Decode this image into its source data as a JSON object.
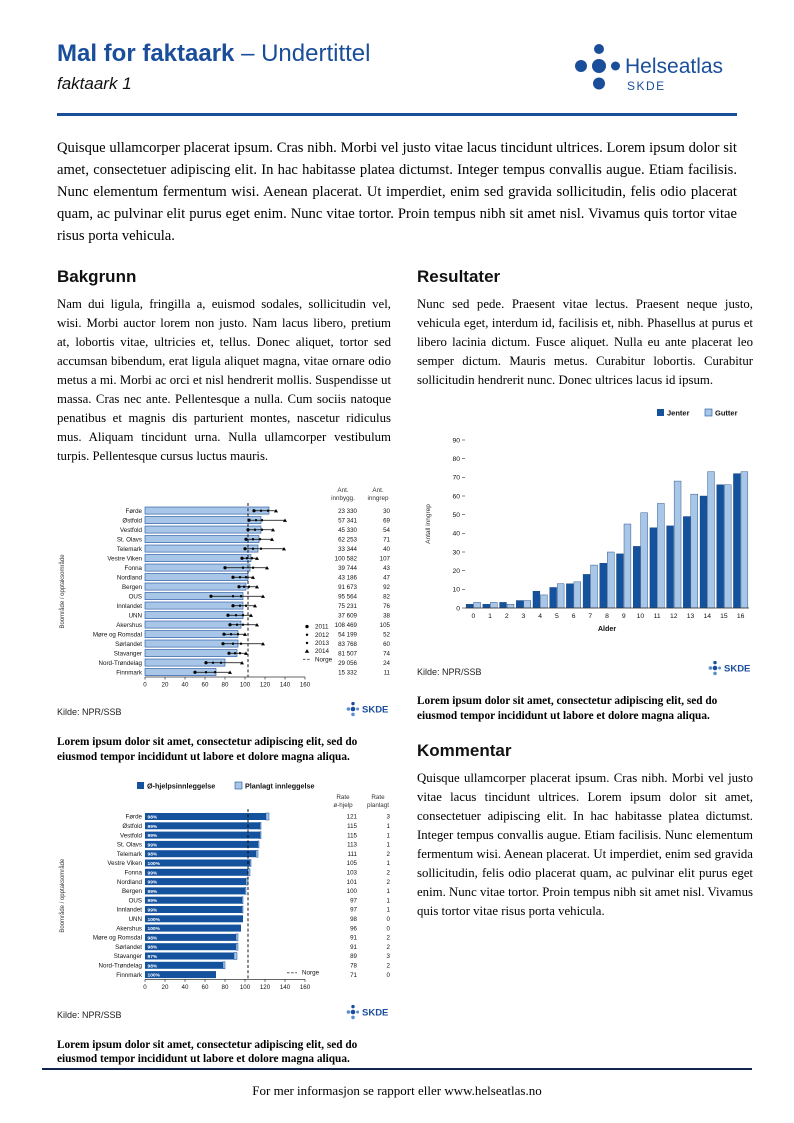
{
  "page": {
    "header": {
      "title_bold": "Mal for faktaark",
      "title_rest": " – Undertittel",
      "subtitle": "faktaark 1",
      "logo_name": "Helseatlas",
      "logo_sub": "SKDE"
    },
    "intro": "Quisque ullamcorper placerat ipsum. Cras nibh. Morbi vel justo vitae lacus tincidunt ultrices. Lorem ipsum dolor sit amet, consectetuer adipiscing elit. In hac habitasse platea dictumst. Integer tempus convallis augue. Etiam facilisis. Nunc elementum fermentum wisi. Aenean placerat. Ut imperdiet, enim sed gravida sollicitudin, felis odio placerat quam, ac pulvinar elit purus eget enim. Nunc vitae tortor. Proin tempus nibh sit amet nisl. Vivamus quis tortor vitae risus porta vehicula.",
    "sections": {
      "bakgrunn": {
        "heading": "Bakgrunn",
        "body": "Nam dui ligula, fringilla a, euismod sodales, sollicitudin vel, wisi. Morbi auctor lorem non justo. Nam lacus libero, pretium at, lobortis vitae, ultricies et, tellus. Donec aliquet, tortor sed accumsan bibendum, erat ligula aliquet magna, vitae ornare odio metus a mi. Morbi ac orci et nisl hendrerit mollis. Suspendisse ut massa. Cras nec ante. Pellentesque a nulla. Cum sociis natoque penatibus et magnis dis parturient montes, nascetur ridiculus mus. Aliquam tincidunt urna. Nulla ullamcorper vestibulum turpis. Pellentesque cursus luctus mauris."
      },
      "resultater": {
        "heading": "Resultater",
        "body": "Nunc sed pede. Praesent vitae lectus. Praesent neque justo, vehicula eget, interdum id, facilisis et, nibh. Phasellus at purus et libero lacinia dictum. Fusce aliquet. Nulla eu ante placerat leo semper dictum. Mauris metus. Curabitur lobortis. Curabitur sollicitudin hendrerit nunc. Donec ultrices lacus id ipsum."
      },
      "kommentar": {
        "heading": "Kommentar",
        "body": "Quisque ullamcorper placerat ipsum. Cras nibh. Morbi vel justo vitae lacus tincidunt ultrices. Lorem ipsum dolor sit amet, consectetuer adipiscing elit. In hac habitasse platea dictumst. Integer tempus convallis augue. Etiam facilisis. Nunc elementum fermentum wisi. Aenean placerat. Ut imperdiet, enim sed gravida sollicitudin, felis odio placerat quam, ac pulvinar elit purus eget enim. Nunc vitae tortor. Proin tempus nibh sit amet nisl. Vivamus quis tortor vitae risus porta vehicula."
      }
    },
    "captions": {
      "fig1": "Lorem ipsum dolor sit amet, consectetur adipiscing elit, sed do eiusmod tempor incididunt ut labore et dolore magna aliqua.",
      "fig2": "Lorem ipsum dolor sit amet, consectetur adipiscing elit, sed do eiusmod tempor incididunt ut labore et dolore magna aliqua.",
      "fig3": "Lorem ipsum dolor sit amet, consectetur adipiscing elit, sed do eiusmod tempor incididunt ut labore et dolore magna aliqua."
    },
    "footer": {
      "text": "For mer informasjon se rapport eller www.helseatlas.no"
    },
    "colors": {
      "brand": "#1a4e9b",
      "bar_dark": "#14529e",
      "bar_light": "#a8c7e8",
      "dot_light": "#5b8fd0"
    }
  },
  "chart_data": [
    {
      "type": "bar",
      "orientation": "horizontal",
      "ylabel": "Boområde / opptaksområde",
      "xlim": [
        0,
        160
      ],
      "xticks": [
        0,
        20,
        40,
        60,
        80,
        100,
        120,
        140,
        160
      ],
      "categories": [
        "Førde",
        "Østfold",
        "Vestfold",
        "St. Olavs",
        "Telemark",
        "Vestre Viken",
        "Fonna",
        "Nordland",
        "Bergen",
        "OUS",
        "Innlandet",
        "UNN",
        "Akershus",
        "Møre og Romsdal",
        "Sørlandet",
        "Stavanger",
        "Nord-Trøndelag",
        "Finnmark"
      ],
      "values": [
        124,
        116,
        116,
        114,
        113,
        106,
        105,
        103,
        101,
        98,
        98,
        98,
        96,
        93,
        93,
        92,
        80,
        71
      ],
      "year_points": [
        [
          109,
          116,
          123,
          131
        ],
        [
          104,
          111,
          117,
          140
        ],
        [
          103,
          110,
          117,
          128
        ],
        [
          101,
          108,
          115,
          127
        ],
        [
          100,
          108,
          116,
          139
        ],
        [
          97,
          102,
          107,
          112
        ],
        [
          80,
          98,
          108,
          122
        ],
        [
          88,
          95,
          101,
          108
        ],
        [
          94,
          99,
          104,
          112
        ],
        [
          66,
          88,
          96,
          118
        ],
        [
          88,
          95,
          101,
          110
        ],
        [
          83,
          91,
          98,
          106
        ],
        [
          85,
          92,
          98,
          112
        ],
        [
          79,
          86,
          93,
          100
        ],
        [
          78,
          88,
          96,
          118
        ],
        [
          84,
          90,
          95,
          101
        ],
        [
          61,
          68,
          76,
          97
        ],
        [
          50,
          61,
          70,
          85
        ]
      ],
      "legend": [
        "2011",
        "2012",
        "2013",
        "2014",
        "Norge"
      ],
      "norge_line": 103,
      "table": {
        "headers": [
          "Ant. innbygg.",
          "Ant. inngrep"
        ],
        "innbygg": [
          "23 330",
          "57 341",
          "45 330",
          "62 253",
          "33 344",
          "100 582",
          "39 744",
          "43 186",
          "91 673",
          "95 564",
          "75 231",
          "37 609",
          "108 469",
          "54 199",
          "83 768",
          "81 507",
          "29 056",
          "15 332"
        ],
        "inngrep": [
          "30",
          "69",
          "54",
          "71",
          "40",
          "107",
          "43",
          "47",
          "92",
          "82",
          "76",
          "38",
          "105",
          "52",
          "60",
          "74",
          "24",
          "11"
        ]
      },
      "source": "Kilde: NPR/SSB"
    },
    {
      "type": "bar",
      "orientation": "vertical-grouped",
      "xlabel": "Alder",
      "ylabel": "Antall inngrep",
      "ylim": [
        0,
        90
      ],
      "yticks": [
        0,
        10,
        20,
        30,
        40,
        50,
        60,
        70,
        80,
        90
      ],
      "categories": [
        "0",
        "1",
        "2",
        "3",
        "4",
        "5",
        "6",
        "7",
        "8",
        "9",
        "10",
        "11",
        "12",
        "13",
        "14",
        "15",
        "16"
      ],
      "series": [
        {
          "name": "Jenter",
          "color": "#14529e",
          "values": [
            2,
            2,
            3,
            4,
            9,
            11,
            13,
            18,
            24,
            29,
            33,
            43,
            44,
            49,
            60,
            66,
            72
          ]
        },
        {
          "name": "Gutter",
          "color": "#a8c7e8",
          "values": [
            3,
            3,
            2,
            4,
            7,
            13,
            14,
            23,
            30,
            45,
            51,
            56,
            68,
            61,
            73,
            66,
            73
          ]
        }
      ],
      "source": "Kilde: NPR/SSB"
    },
    {
      "type": "bar",
      "orientation": "horizontal-stacked",
      "ylabel": "Boområde / opptaksområde",
      "xlim": [
        0,
        160
      ],
      "xticks": [
        0,
        20,
        40,
        60,
        80,
        100,
        120,
        140,
        160
      ],
      "categories": [
        "Førde",
        "Østfold",
        "Vestfold",
        "St. Olavs",
        "Telemark",
        "Vestre Viken",
        "Fonna",
        "Nordland",
        "Bergen",
        "OUS",
        "Innlandet",
        "UNN",
        "Akershus",
        "Møre og Romsdal",
        "Sørlandet",
        "Stavanger",
        "Nord-Trøndelag",
        "Finnmark"
      ],
      "series": [
        {
          "name": "Ø-hjelpsinnleggelse",
          "color": "#14529e",
          "values": [
            121,
            115,
            115,
            113,
            111,
            105,
            103,
            101,
            100,
            97,
            97,
            98,
            96,
            91,
            91,
            89,
            78,
            71
          ]
        },
        {
          "name": "Planlagt innleggelse",
          "color": "#a8c7e8",
          "values": [
            3,
            1,
            1,
            1,
            2,
            1,
            2,
            2,
            1,
            1,
            1,
            0,
            0,
            2,
            2,
            3,
            2,
            0
          ]
        }
      ],
      "bar_labels": [
        "98%",
        "99%",
        "99%",
        "99%",
        "98%",
        "100%",
        "99%",
        "99%",
        "99%",
        "99%",
        "99%",
        "100%",
        "100%",
        "98%",
        "98%",
        "97%",
        "98%",
        "100%"
      ],
      "norge_line": 103,
      "norge_legend": "Norge",
      "table": {
        "headers": [
          "Rate ø-hjelp",
          "Rate planlagt"
        ],
        "o_hjelp": [
          "121",
          "115",
          "115",
          "113",
          "111",
          "105",
          "103",
          "101",
          "100",
          "97",
          "97",
          "98",
          "96",
          "91",
          "91",
          "89",
          "78",
          "71"
        ],
        "planlagt": [
          "3",
          "1",
          "1",
          "1",
          "2",
          "1",
          "2",
          "2",
          "1",
          "1",
          "1",
          "0",
          "0",
          "2",
          "2",
          "3",
          "2",
          "0"
        ]
      },
      "source": "Kilde: NPR/SSB"
    }
  ]
}
